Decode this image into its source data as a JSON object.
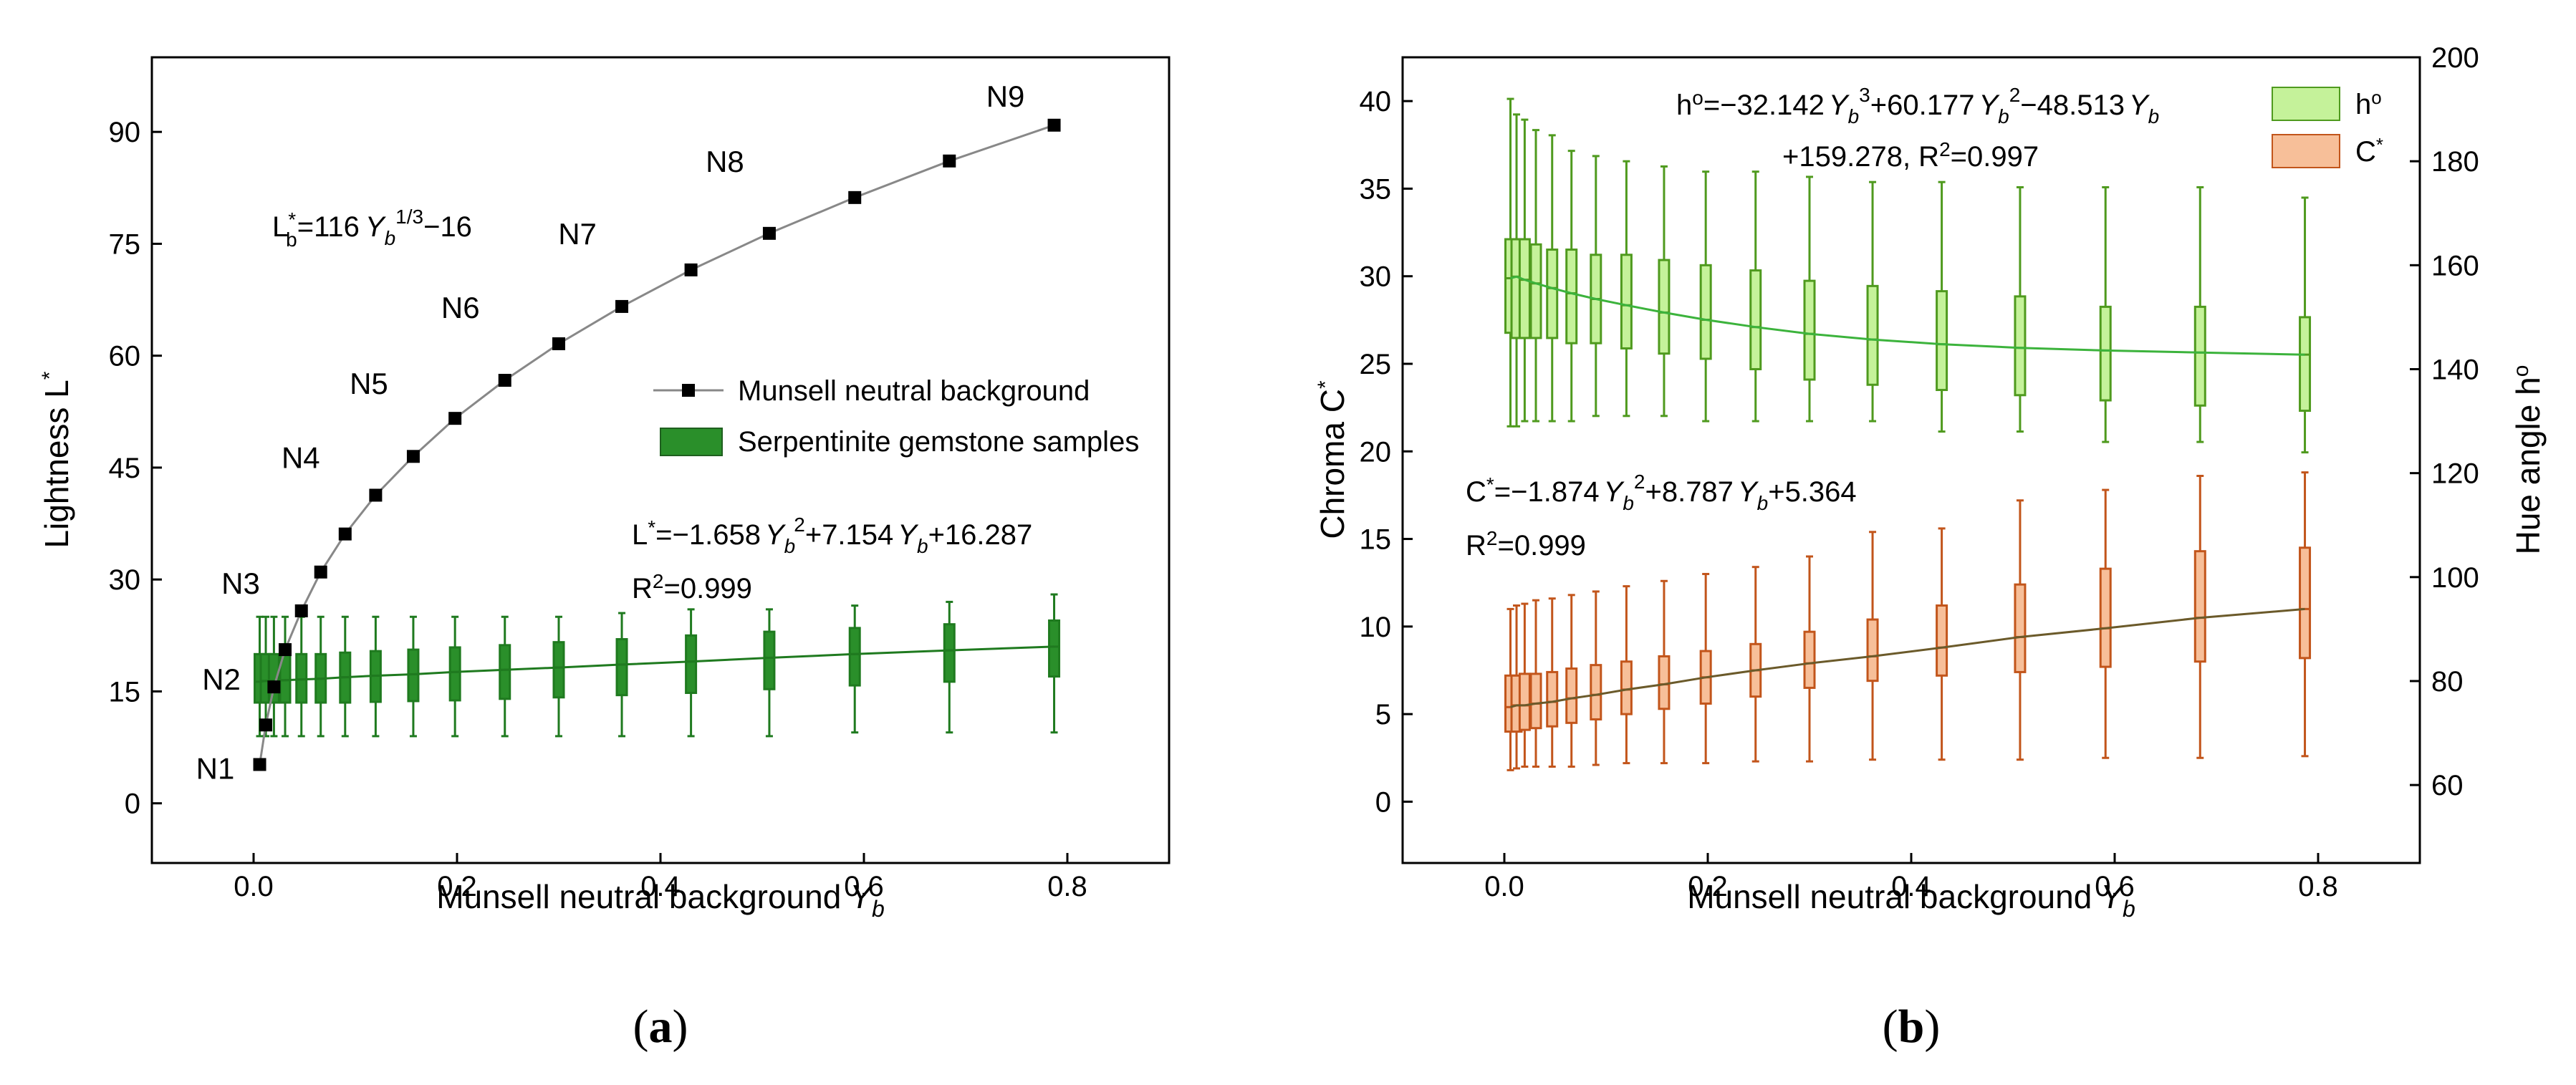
{
  "chart_data": [
    {
      "type": "line",
      "panel_label_open": "(",
      "panel_label_letter": "a",
      "panel_label_close": ")",
      "xlabel": "Munsell neutral background",
      "xlabel_var": "Y",
      "xlabel_sub": "b",
      "ylabel": "Lightness L",
      "ylabel_sup": "*",
      "xlim": [
        -0.1,
        0.9
      ],
      "ylim": [
        -8,
        100
      ],
      "xticks": [
        0.0,
        0.2,
        0.4,
        0.6,
        0.8
      ],
      "xtick_labels": [
        "0.0",
        "0.2",
        "0.4",
        "0.6",
        "0.8"
      ],
      "yticks": [
        0,
        15,
        30,
        45,
        60,
        75,
        90
      ],
      "ytick_labels": [
        "0",
        "15",
        "30",
        "45",
        "60",
        "75",
        "90"
      ],
      "colors": {
        "munsell": "#000000",
        "munsell_line": "#888888",
        "serp": "#1f7a1f",
        "serp_fill": "#2a8f2a"
      },
      "munsell": {
        "name": "Munsell neutral background",
        "x": [
          0.006,
          0.012,
          0.02,
          0.031,
          0.047,
          0.066,
          0.09,
          0.12,
          0.157,
          0.198,
          0.247,
          0.3,
          0.362,
          0.43,
          0.507,
          0.591,
          0.684,
          0.787
        ],
        "y": [
          5.2,
          10.5,
          15.6,
          20.6,
          25.8,
          31.0,
          36.1,
          41.3,
          46.5,
          51.6,
          56.7,
          61.6,
          66.6,
          71.5,
          76.4,
          81.2,
          86.1,
          90.9
        ],
        "labels": [
          {
            "text": "N1",
            "x": 0.006,
            "y": 5.2
          },
          {
            "text": "N2",
            "x": 0.012,
            "y": 15.6
          },
          {
            "text": "N3",
            "x": 0.031,
            "y": 25.8
          },
          {
            "text": "N4",
            "x": 0.09,
            "y": 41.3
          },
          {
            "text": "N5",
            "x": 0.157,
            "y": 51.6
          },
          {
            "text": "N6",
            "x": 0.247,
            "y": 61.6
          },
          {
            "text": "N7",
            "x": 0.362,
            "y": 71.5
          },
          {
            "text": "N8",
            "x": 0.507,
            "y": 81.2
          },
          {
            "text": "N9",
            "x": 0.787,
            "y": 90.9
          }
        ]
      },
      "serpentinite": {
        "name": "Serpentinite gemstone samples",
        "x": [
          0.006,
          0.012,
          0.02,
          0.031,
          0.047,
          0.066,
          0.09,
          0.12,
          0.157,
          0.198,
          0.247,
          0.3,
          0.362,
          0.43,
          0.507,
          0.591,
          0.684,
          0.787
        ],
        "whisker_low": [
          9.0,
          9.0,
          9.0,
          9.0,
          9.0,
          9.0,
          9.0,
          9.0,
          9.0,
          9.0,
          9.0,
          9.0,
          9.0,
          9.0,
          9.0,
          9.5,
          9.5,
          9.5
        ],
        "q1": [
          13.5,
          13.5,
          13.5,
          13.5,
          13.5,
          13.5,
          13.5,
          13.6,
          13.7,
          13.8,
          14.0,
          14.2,
          14.5,
          14.8,
          15.3,
          15.8,
          16.3,
          17.0
        ],
        "median": [
          16.3,
          16.4,
          16.4,
          16.5,
          16.6,
          16.7,
          16.9,
          17.1,
          17.3,
          17.6,
          17.9,
          18.2,
          18.6,
          19.0,
          19.5,
          20.0,
          20.5,
          21.0
        ],
        "q3": [
          20.0,
          20.0,
          20.0,
          20.0,
          20.0,
          20.0,
          20.2,
          20.4,
          20.6,
          20.9,
          21.2,
          21.6,
          22.0,
          22.5,
          23.0,
          23.5,
          24.0,
          24.5
        ],
        "whisker_high": [
          25.0,
          25.0,
          25.0,
          25.0,
          25.0,
          25.0,
          25.0,
          25.0,
          25.0,
          25.0,
          25.0,
          25.0,
          25.5,
          26.0,
          26.0,
          26.5,
          27.0,
          28.0
        ]
      },
      "annotations": {
        "eq1_left": "L",
        "eq1_sub": "b",
        "eq1_sup": "*",
        "eq1_mid": "=116",
        "eq1_var": "Y",
        "eq1_var_sub": "b",
        "eq1_pow": "1/3",
        "eq1_tail": "−16",
        "eq2_left": "L",
        "eq2_sup": "*",
        "eq2_a": "=−1.658",
        "eq2_var1": "Y",
        "eq2_var1_sub": "b",
        "eq2_var1_sup": "2",
        "eq2_b": "+7.154",
        "eq2_var2": "Y",
        "eq2_var2_sub": "b",
        "eq2_c": "+16.287",
        "r2_left": "R",
        "r2_sup": "2",
        "r2_val": "=0.999"
      }
    },
    {
      "type": "box",
      "panel_label_open": "(",
      "panel_label_letter": "b",
      "panel_label_close": ")",
      "xlabel": "Munsell neutral background",
      "xlabel_var": "Y",
      "xlabel_sub": "b",
      "ylabel": "Chroma C",
      "ylabel_sup": "*",
      "y2label": "Hue angle h",
      "y2label_sup": "o",
      "xlim": [
        -0.1,
        0.9
      ],
      "ylim": [
        -3.5,
        42.5
      ],
      "y2lim": [
        45,
        200
      ],
      "xticks": [
        0.0,
        0.2,
        0.4,
        0.6,
        0.8
      ],
      "xtick_labels": [
        "0.0",
        "0.2",
        "0.4",
        "0.6",
        "0.8"
      ],
      "yticks": [
        0,
        5,
        10,
        15,
        20,
        25,
        30,
        35,
        40
      ],
      "ytick_labels": [
        "0",
        "5",
        "10",
        "15",
        "20",
        "25",
        "30",
        "35",
        "40"
      ],
      "y2ticks": [
        60,
        80,
        100,
        120,
        140,
        160,
        180,
        200
      ],
      "y2tick_labels": [
        "60",
        "80",
        "100",
        "120",
        "140",
        "160",
        "180",
        "200"
      ],
      "colors": {
        "hue_edge": "#4f9a1e",
        "hue_fill": "#c5f29a",
        "hue_line": "#3cb33c",
        "chroma_edge": "#c2551b",
        "chroma_fill": "#f7bf99",
        "chroma_line": "#6b5a2a"
      },
      "hue": {
        "name": "h",
        "name_sup": "o",
        "x": [
          0.006,
          0.012,
          0.02,
          0.031,
          0.047,
          0.066,
          0.09,
          0.12,
          0.157,
          0.198,
          0.247,
          0.3,
          0.362,
          0.43,
          0.507,
          0.591,
          0.684,
          0.787
        ],
        "whisker_low": [
          129,
          129,
          130,
          130,
          130,
          130,
          131,
          131,
          131,
          130,
          130,
          130,
          130,
          128,
          128,
          126,
          126,
          124
        ],
        "q1": [
          147,
          146,
          146,
          146,
          146,
          145,
          145,
          144,
          143,
          142,
          140,
          138,
          137,
          136,
          135,
          134,
          133,
          132
        ],
        "median": [
          157.5,
          157.8,
          157.2,
          156.5,
          155.6,
          154.6,
          153.5,
          152.3,
          150.9,
          149.5,
          148.1,
          146.8,
          145.7,
          144.8,
          144.1,
          143.6,
          143.2,
          142.8
        ],
        "q3": [
          165,
          165,
          165,
          164,
          163,
          163,
          162,
          162,
          161,
          160,
          159,
          157,
          156,
          155,
          154,
          152,
          152,
          150
        ],
        "whisker_high": [
          192,
          189,
          188,
          186,
          185,
          182,
          181,
          180,
          179,
          178,
          178,
          177,
          176,
          176,
          175,
          175,
          175,
          173
        ]
      },
      "chroma": {
        "name": "C",
        "name_sup": "*",
        "x": [
          0.006,
          0.012,
          0.02,
          0.031,
          0.047,
          0.066,
          0.09,
          0.12,
          0.157,
          0.198,
          0.247,
          0.3,
          0.362,
          0.43,
          0.507,
          0.591,
          0.684,
          0.787
        ],
        "whisker_low": [
          1.8,
          1.9,
          2.0,
          2.0,
          2.0,
          2.0,
          2.1,
          2.2,
          2.2,
          2.2,
          2.3,
          2.3,
          2.4,
          2.4,
          2.4,
          2.5,
          2.5,
          2.6
        ],
        "q1": [
          4.0,
          4.0,
          4.1,
          4.2,
          4.3,
          4.5,
          4.7,
          5.0,
          5.3,
          5.6,
          6.0,
          6.5,
          6.9,
          7.2,
          7.4,
          7.7,
          8.0,
          8.2
        ],
        "median": [
          5.4,
          5.5,
          5.5,
          5.6,
          5.7,
          5.9,
          6.1,
          6.4,
          6.7,
          7.1,
          7.5,
          7.9,
          8.3,
          8.8,
          9.4,
          9.9,
          10.5,
          11.0
        ],
        "q3": [
          7.2,
          7.2,
          7.3,
          7.3,
          7.4,
          7.6,
          7.8,
          8.0,
          8.3,
          8.6,
          9.0,
          9.7,
          10.4,
          11.2,
          12.4,
          13.3,
          14.3,
          14.5
        ],
        "whisker_high": [
          11.0,
          11.2,
          11.3,
          11.5,
          11.6,
          11.8,
          12.0,
          12.3,
          12.6,
          13.0,
          13.4,
          14.0,
          15.4,
          15.6,
          17.2,
          17.8,
          18.6,
          18.8
        ]
      },
      "annotations": {
        "eq1_h": "h",
        "eq1_h_sup": "o",
        "eq1_a": "=−32.142",
        "eq1_v1": "Y",
        "eq1_v1_sub": "b",
        "eq1_v1_sup": "3",
        "eq1_b": "+60.177",
        "eq1_v2": "Y",
        "eq1_v2_sub": "b",
        "eq1_v2_sup": "2",
        "eq1_c": "−48.513",
        "eq1_v3": "Y",
        "eq1_v3_sub": "b",
        "eq1_line2": "+159.278,  R",
        "eq1_line2_sup": "2",
        "eq1_line2_tail": "=0.997",
        "eq2_c": "C",
        "eq2_c_sup": "*",
        "eq2_a": "=−1.874",
        "eq2_v1": "Y",
        "eq2_v1_sub": "b",
        "eq2_v1_sup": "2",
        "eq2_b": "+8.787",
        "eq2_v2": "Y",
        "eq2_v2_sub": "b",
        "eq2_tail": "+5.364",
        "r2_left": "R",
        "r2_sup": "2",
        "r2_val": "=0.999"
      }
    }
  ]
}
